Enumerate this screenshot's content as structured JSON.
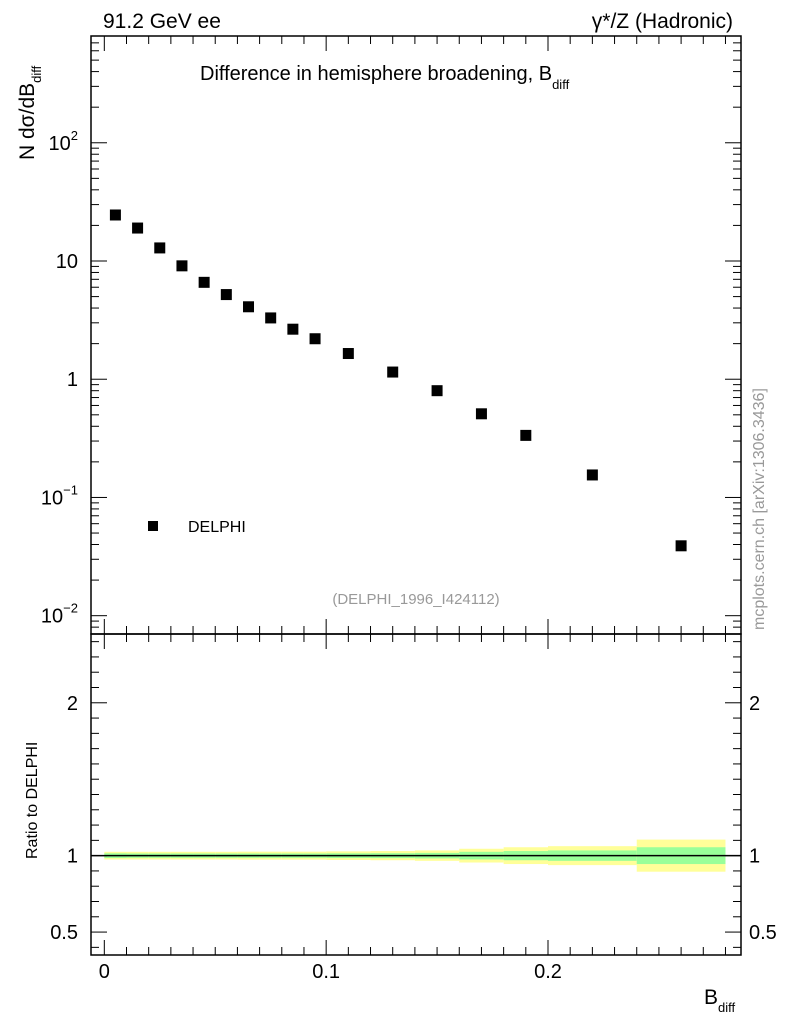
{
  "header": {
    "left": "91.2 GeV ee",
    "right": "γ*/Z (Hadronic)"
  },
  "side_label": "mcplots.cern.ch [arXiv:1306.3436]",
  "analysis_id": "(DELPHI_1996_I424112)",
  "chart_data": [
    {
      "type": "scatter",
      "title": "Difference in hemisphere broadening, B",
      "title_sub": "diff",
      "ylabel": "N  dσ/dB",
      "ylabel_sub": "diff",
      "yscale": "log",
      "ylim": [
        0.007,
        800
      ],
      "xlim": [
        -0.006,
        0.287
      ],
      "y_ticks": [
        {
          "value": 0.01,
          "base": "10",
          "exp": "−2"
        },
        {
          "value": 0.1,
          "base": "10",
          "exp": "−1"
        },
        {
          "value": 1,
          "base": "1",
          "exp": ""
        },
        {
          "value": 10,
          "base": "10",
          "exp": ""
        },
        {
          "value": 100,
          "base": "10",
          "exp": "2"
        }
      ],
      "legend": {
        "position": "bottom-left",
        "entries": [
          "DELPHI"
        ]
      },
      "series": [
        {
          "name": "DELPHI",
          "marker": "square",
          "color": "#000000",
          "x": [
            0.005,
            0.015,
            0.025,
            0.035,
            0.045,
            0.055,
            0.065,
            0.075,
            0.085,
            0.095,
            0.11,
            0.13,
            0.15,
            0.17,
            0.19,
            0.22,
            0.26
          ],
          "y": [
            24.5,
            19.0,
            12.9,
            9.1,
            6.6,
            5.2,
            4.1,
            3.3,
            2.65,
            2.2,
            1.65,
            1.15,
            0.8,
            0.51,
            0.335,
            0.155,
            0.039
          ]
        }
      ]
    },
    {
      "type": "area",
      "ylabel": "Ratio to DELPHI",
      "xlabel": "B",
      "xlabel_sub": "diff",
      "ylim": [
        0.35,
        2.45
      ],
      "xlim": [
        -0.006,
        0.287
      ],
      "x_ticks": [
        {
          "value": 0,
          "label": "0"
        },
        {
          "value": 0.1,
          "label": "0.1"
        },
        {
          "value": 0.2,
          "label": "0.2"
        }
      ],
      "y_ticks": [
        {
          "value": 0.5,
          "label": "0.5"
        },
        {
          "value": 1,
          "label": "1"
        },
        {
          "value": 2,
          "label": "2"
        }
      ],
      "reference_line": 1,
      "colors": {
        "stat_band": "#99ff99",
        "total_band": "#ffff99"
      },
      "bins": [
        {
          "xlo": 0.0,
          "xhi": 0.01,
          "stat": [
            0.985,
            1.015
          ],
          "total": [
            0.975,
            1.025
          ]
        },
        {
          "xlo": 0.01,
          "xhi": 0.02,
          "stat": [
            0.986,
            1.014
          ],
          "total": [
            0.975,
            1.025
          ]
        },
        {
          "xlo": 0.02,
          "xhi": 0.03,
          "stat": [
            0.986,
            1.014
          ],
          "total": [
            0.975,
            1.025
          ]
        },
        {
          "xlo": 0.03,
          "xhi": 0.04,
          "stat": [
            0.986,
            1.014
          ],
          "total": [
            0.975,
            1.025
          ]
        },
        {
          "xlo": 0.04,
          "xhi": 0.05,
          "stat": [
            0.986,
            1.014
          ],
          "total": [
            0.975,
            1.025
          ]
        },
        {
          "xlo": 0.05,
          "xhi": 0.06,
          "stat": [
            0.986,
            1.014
          ],
          "total": [
            0.975,
            1.025
          ]
        },
        {
          "xlo": 0.06,
          "xhi": 0.07,
          "stat": [
            0.986,
            1.014
          ],
          "total": [
            0.974,
            1.026
          ]
        },
        {
          "xlo": 0.07,
          "xhi": 0.08,
          "stat": [
            0.986,
            1.014
          ],
          "total": [
            0.974,
            1.026
          ]
        },
        {
          "xlo": 0.08,
          "xhi": 0.09,
          "stat": [
            0.986,
            1.014
          ],
          "total": [
            0.974,
            1.026
          ]
        },
        {
          "xlo": 0.09,
          "xhi": 0.1,
          "stat": [
            0.986,
            1.014
          ],
          "total": [
            0.974,
            1.026
          ]
        },
        {
          "xlo": 0.1,
          "xhi": 0.12,
          "stat": [
            0.985,
            1.015
          ],
          "total": [
            0.972,
            1.028
          ]
        },
        {
          "xlo": 0.12,
          "xhi": 0.14,
          "stat": [
            0.984,
            1.016
          ],
          "total": [
            0.97,
            1.03
          ]
        },
        {
          "xlo": 0.14,
          "xhi": 0.16,
          "stat": [
            0.982,
            1.018
          ],
          "total": [
            0.966,
            1.034
          ]
        },
        {
          "xlo": 0.16,
          "xhi": 0.18,
          "stat": [
            0.975,
            1.025
          ],
          "total": [
            0.955,
            1.045
          ]
        },
        {
          "xlo": 0.18,
          "xhi": 0.2,
          "stat": [
            0.97,
            1.03
          ],
          "total": [
            0.945,
            1.055
          ]
        },
        {
          "xlo": 0.2,
          "xhi": 0.24,
          "stat": [
            0.966,
            1.034
          ],
          "total": [
            0.938,
            1.062
          ]
        },
        {
          "xlo": 0.24,
          "xhi": 0.28,
          "stat": [
            0.945,
            1.055
          ],
          "total": [
            0.895,
            1.105
          ]
        }
      ]
    }
  ]
}
